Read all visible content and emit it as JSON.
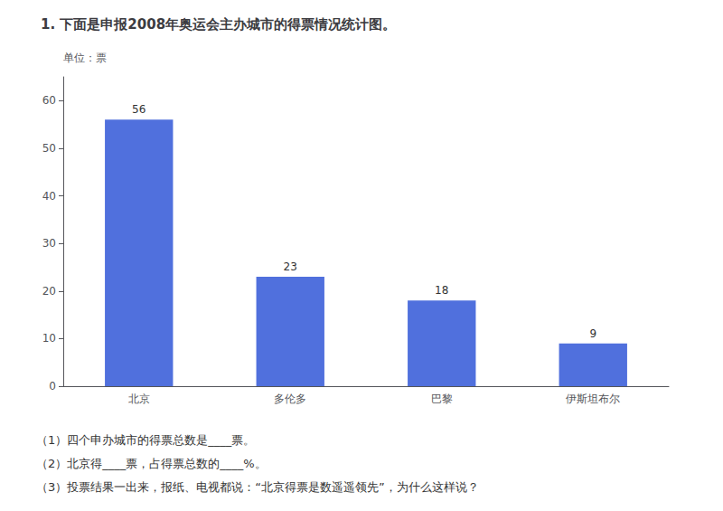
{
  "chart_data": {
    "type": "bar",
    "title": "1. 下面是申报2008年奥运会主办城市的得票情况统计图。",
    "y_label": "单位：票",
    "categories": [
      "北京",
      "多伦多",
      "巴黎",
      "伊斯坦布尔"
    ],
    "values": [
      56,
      23,
      18,
      9
    ],
    "ylim": [
      0,
      65
    ],
    "yticks": [
      0,
      10,
      20,
      30,
      40,
      50,
      60
    ],
    "data_labels": true,
    "grid": false,
    "annotations": [
      "（1）四个申办城市的得票总数是____票。",
      "（2）北京得____票，占得票总数的____%。",
      "（3）投票结果一出来，报纸、电视都说：“北京得票是数遥遥领先”，为什么这样说？"
    ]
  }
}
